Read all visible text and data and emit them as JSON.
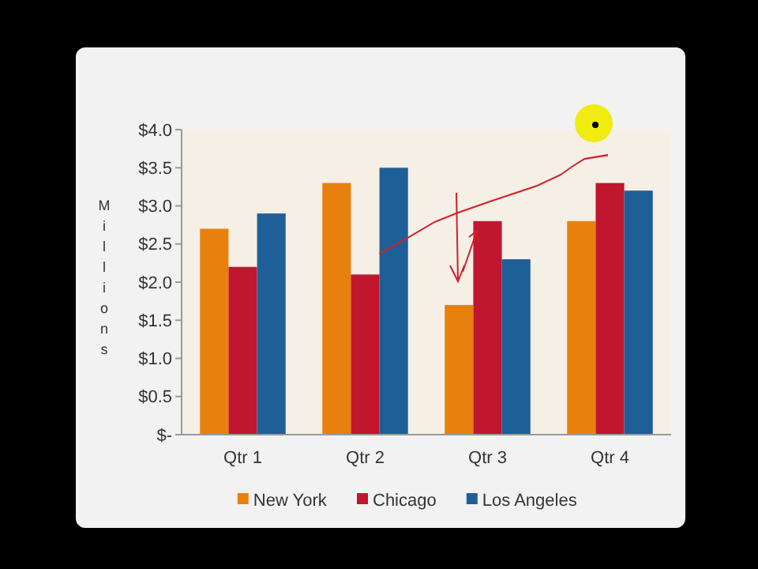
{
  "chart_data": {
    "type": "bar",
    "ylabel": "Millions",
    "categories": [
      "Qtr 1",
      "Qtr 2",
      "Qtr 3",
      "Qtr 4"
    ],
    "series": [
      {
        "name": "New York",
        "color": "#e8800e",
        "values": [
          2.7,
          3.3,
          1.7,
          2.8
        ]
      },
      {
        "name": "Chicago",
        "color": "#c0162e",
        "values": [
          2.2,
          2.1,
          2.8,
          3.3
        ]
      },
      {
        "name": "Los Angeles",
        "color": "#1f5f98",
        "values": [
          2.9,
          3.5,
          2.3,
          3.2
        ]
      }
    ],
    "ylim": [
      0,
      4
    ],
    "yticks": [
      {
        "value": 0,
        "label": "$-"
      },
      {
        "value": 0.5,
        "label": "$0.5"
      },
      {
        "value": 1,
        "label": "$1.0"
      },
      {
        "value": 1.5,
        "label": "$1.5"
      },
      {
        "value": 2,
        "label": "$2.0"
      },
      {
        "value": 2.5,
        "label": "$2.5"
      },
      {
        "value": 3,
        "label": "$3.0"
      },
      {
        "value": 3.5,
        "label": "$3.5"
      },
      {
        "value": 4,
        "label": "$4.0"
      }
    ],
    "grid": false,
    "legend": "bottom"
  }
}
